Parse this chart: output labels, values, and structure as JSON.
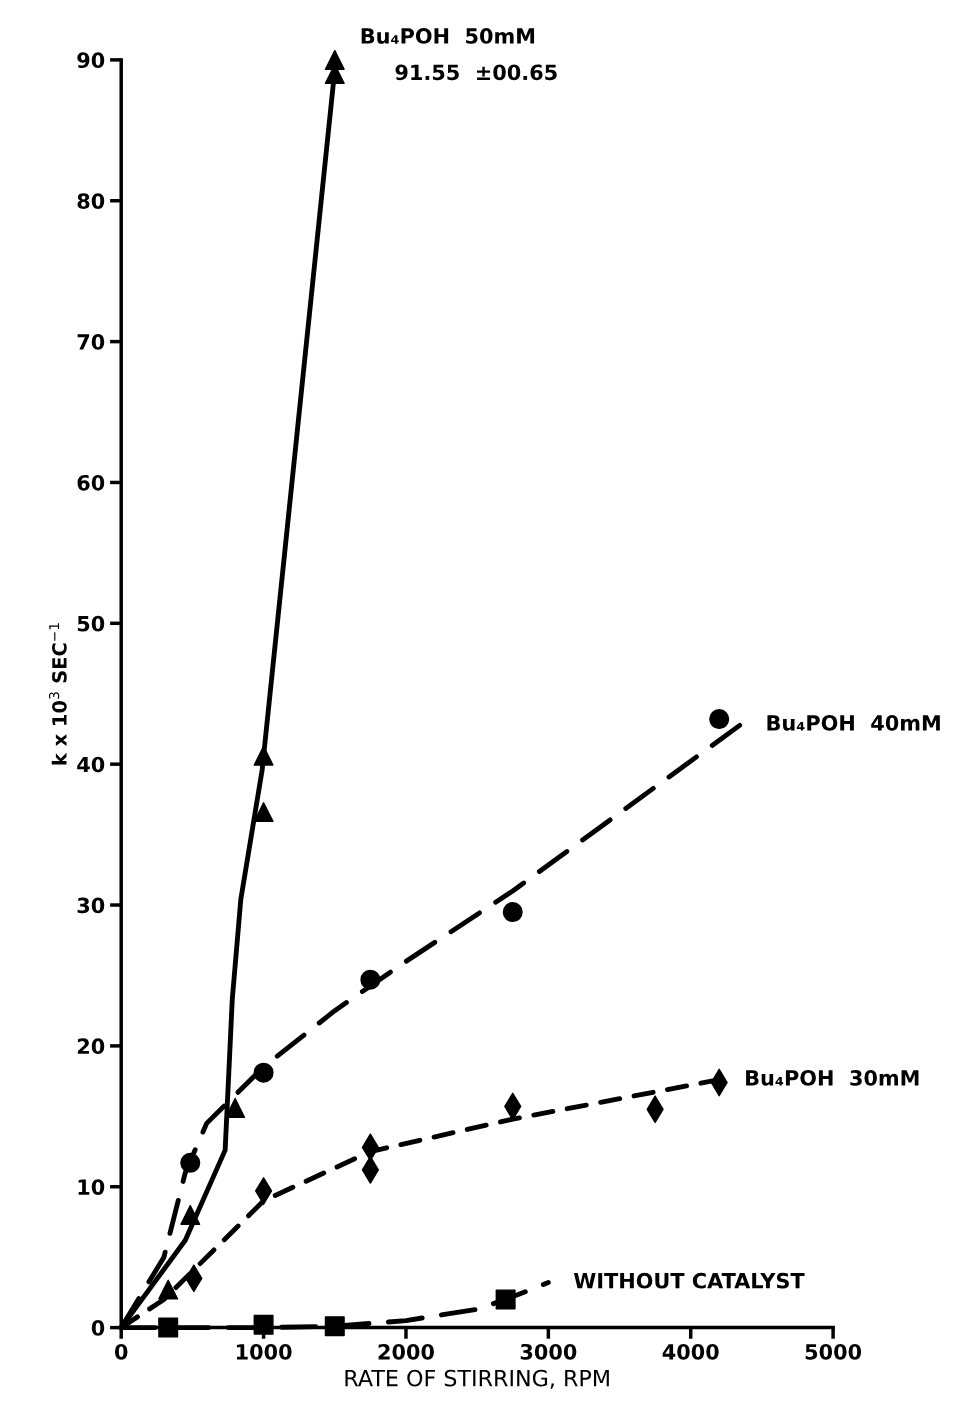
{
  "chart_data": {
    "type": "scatter",
    "xlabel": "RATE OF STIRRING, RPM",
    "ylabel": "k x 10$^{3}$ SEC$^{−1}$",
    "xlim": [
      0,
      5000
    ],
    "ylim": [
      0,
      90
    ],
    "xticks": [
      0,
      1000,
      2000,
      3000,
      4000,
      5000
    ],
    "yticks": [
      0,
      10,
      20,
      30,
      40,
      50,
      60,
      70,
      80,
      90
    ],
    "grid": false,
    "legend": false,
    "series": [
      {
        "marker": "triangle",
        "color": "#000000",
        "x": [
          330,
          485,
          800,
          1000,
          1000,
          1500,
          1500
        ],
        "values": [
          2.7,
          8.0,
          15.6,
          40.6,
          36.6,
          90.0,
          89.0
        ]
      },
      {
        "marker": "circle",
        "color": "#000000",
        "x": [
          485,
          1000,
          1750,
          2750,
          4200
        ],
        "values": [
          11.7,
          18.1,
          24.7,
          29.5,
          43.2
        ]
      },
      {
        "marker": "diamond",
        "color": "#000000",
        "x": [
          510,
          1000,
          1750,
          1750,
          2750,
          3750,
          4200
        ],
        "values": [
          3.5,
          9.7,
          12.8,
          11.2,
          15.7,
          15.5,
          17.4
        ]
      },
      {
        "marker": "square",
        "color": "#000000",
        "x": [
          330,
          1000,
          1500,
          2700
        ],
        "values": [
          0,
          0.2,
          0.1,
          2.0
        ]
      },
      {
        "type": "line",
        "name": "Bu₄POH  50mM",
        "line_style": "solid",
        "color": "#000000",
        "x": [
          0,
          450,
          730,
          780,
          840,
          990,
          1500
        ],
        "values": [
          0,
          6.2,
          12.6,
          23.3,
          30.4,
          39.6,
          89.3
        ]
      },
      {
        "type": "line",
        "name": "Bu₄POH  40mM",
        "line_style": "dashed",
        "color": "#000000",
        "x": [
          0,
          300,
          450,
          600,
          1000,
          1500,
          2000,
          2750,
          4350
        ],
        "values": [
          0,
          5,
          11,
          14.5,
          18.5,
          22.5,
          26,
          31,
          42.8
        ]
      },
      {
        "type": "line",
        "name": "Bu₄POH  30mM",
        "line_style": "dashdot",
        "color": "#000000",
        "x": [
          0,
          300,
          500,
          1000,
          1750,
          2750,
          4200
        ],
        "values": [
          0,
          2,
          4,
          9,
          12.5,
          14.8,
          17.6
        ]
      },
      {
        "type": "line",
        "name": "WITHOUT CATALYST",
        "line_style": "dashed",
        "color": "#000000",
        "x": [
          0,
          1000,
          1500,
          2000,
          2500,
          2700,
          3000
        ],
        "values": [
          0,
          0,
          0.1,
          0.5,
          1.3,
          2,
          3.2
        ]
      }
    ],
    "annotations": [
      "91.55  ±00.65"
    ]
  }
}
